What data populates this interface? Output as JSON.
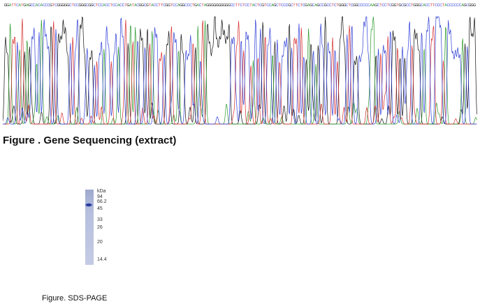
{
  "sequence": {
    "bases": "GGATTCATGAGCCACACCCGTCGGGGGCTCCGGGCGGCTCCACCTCCACCTGATACGGCGTACCTTCGGTCCAGGCCCTGACTAGGGGGGGGGGCCTTCTCCTACTCGTCCAGCTCCCGCTTCTCGAGCAGCCGCCTCTGGGCTCGGCCCCCAAGCTCCTCGGTGCGCCTGGGCACCTTCCCTACCCCCCAGCGGG",
    "base_colors": {
      "A": "#2a9a2a",
      "C": "#2f3fd6",
      "G": "#111111",
      "T": "#d62a2a"
    }
  },
  "figure1": {
    "caption": "Figure . Gene Sequencing (extract)"
  },
  "gel": {
    "unit_label": "kDa",
    "markers": [
      "94",
      "66.2",
      "45",
      "33",
      "26",
      "20",
      "14.4"
    ],
    "lane_color": "#b3bddc",
    "band_color": "#2b3f9e"
  },
  "figure2": {
    "caption": "Figure. SDS-PAGE"
  }
}
